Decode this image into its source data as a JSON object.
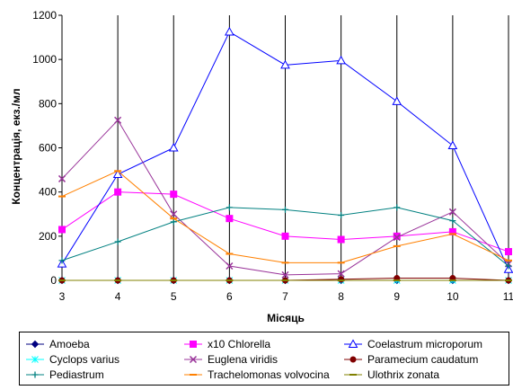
{
  "chart_data": {
    "type": "line",
    "xlabel": "Місяць",
    "ylabel": "Концентрація, екз./мл",
    "x": [
      3,
      4,
      5,
      6,
      7,
      8,
      9,
      10,
      11
    ],
    "xlim": [
      3,
      11
    ],
    "ylim": [
      0,
      1200
    ],
    "yticks": [
      0,
      200,
      400,
      600,
      800,
      1000,
      1200
    ],
    "grid": "vertical",
    "legend_position": "bottom",
    "series": [
      {
        "name": "Amoeba",
        "color": "#000080",
        "marker": "diamond-filled",
        "values": [
          0,
          0,
          0,
          0,
          0,
          0,
          0,
          0,
          0
        ]
      },
      {
        "name": "x10 Chlorella",
        "color": "#ff00ff",
        "marker": "square-filled",
        "values": [
          230,
          400,
          390,
          280,
          200,
          185,
          200,
          220,
          130
        ]
      },
      {
        "name": "Coelastrum microporum",
        "color": "#0000ff",
        "marker": "triangle-open",
        "values": [
          75,
          480,
          600,
          1125,
          975,
          995,
          810,
          610,
          50
        ]
      },
      {
        "name": "Cyclops varius",
        "color": "#00ffff",
        "marker": "cross",
        "values": [
          0,
          0,
          0,
          0,
          0,
          0,
          0,
          0,
          0
        ]
      },
      {
        "name": "Euglena viridis",
        "color": "#993399",
        "marker": "x",
        "values": [
          460,
          725,
          300,
          65,
          25,
          30,
          195,
          310,
          75
        ]
      },
      {
        "name": "Paramecium caudatum",
        "color": "#800000",
        "marker": "circle-filled",
        "values": [
          0,
          0,
          0,
          0,
          0,
          5,
          10,
          10,
          0
        ]
      },
      {
        "name": "Pediastrum",
        "color": "#008080",
        "marker": "plus",
        "values": [
          90,
          175,
          265,
          330,
          320,
          295,
          330,
          270,
          65
        ]
      },
      {
        "name": "Trachelomonas volvocina",
        "color": "#ff8000",
        "marker": "dash",
        "values": [
          380,
          495,
          280,
          120,
          80,
          80,
          155,
          210,
          90
        ]
      },
      {
        "name": "Ulothrix zonata",
        "color": "#808000",
        "marker": "dash",
        "values": [
          0,
          0,
          0,
          0,
          0,
          0,
          0,
          0,
          0
        ]
      }
    ]
  }
}
